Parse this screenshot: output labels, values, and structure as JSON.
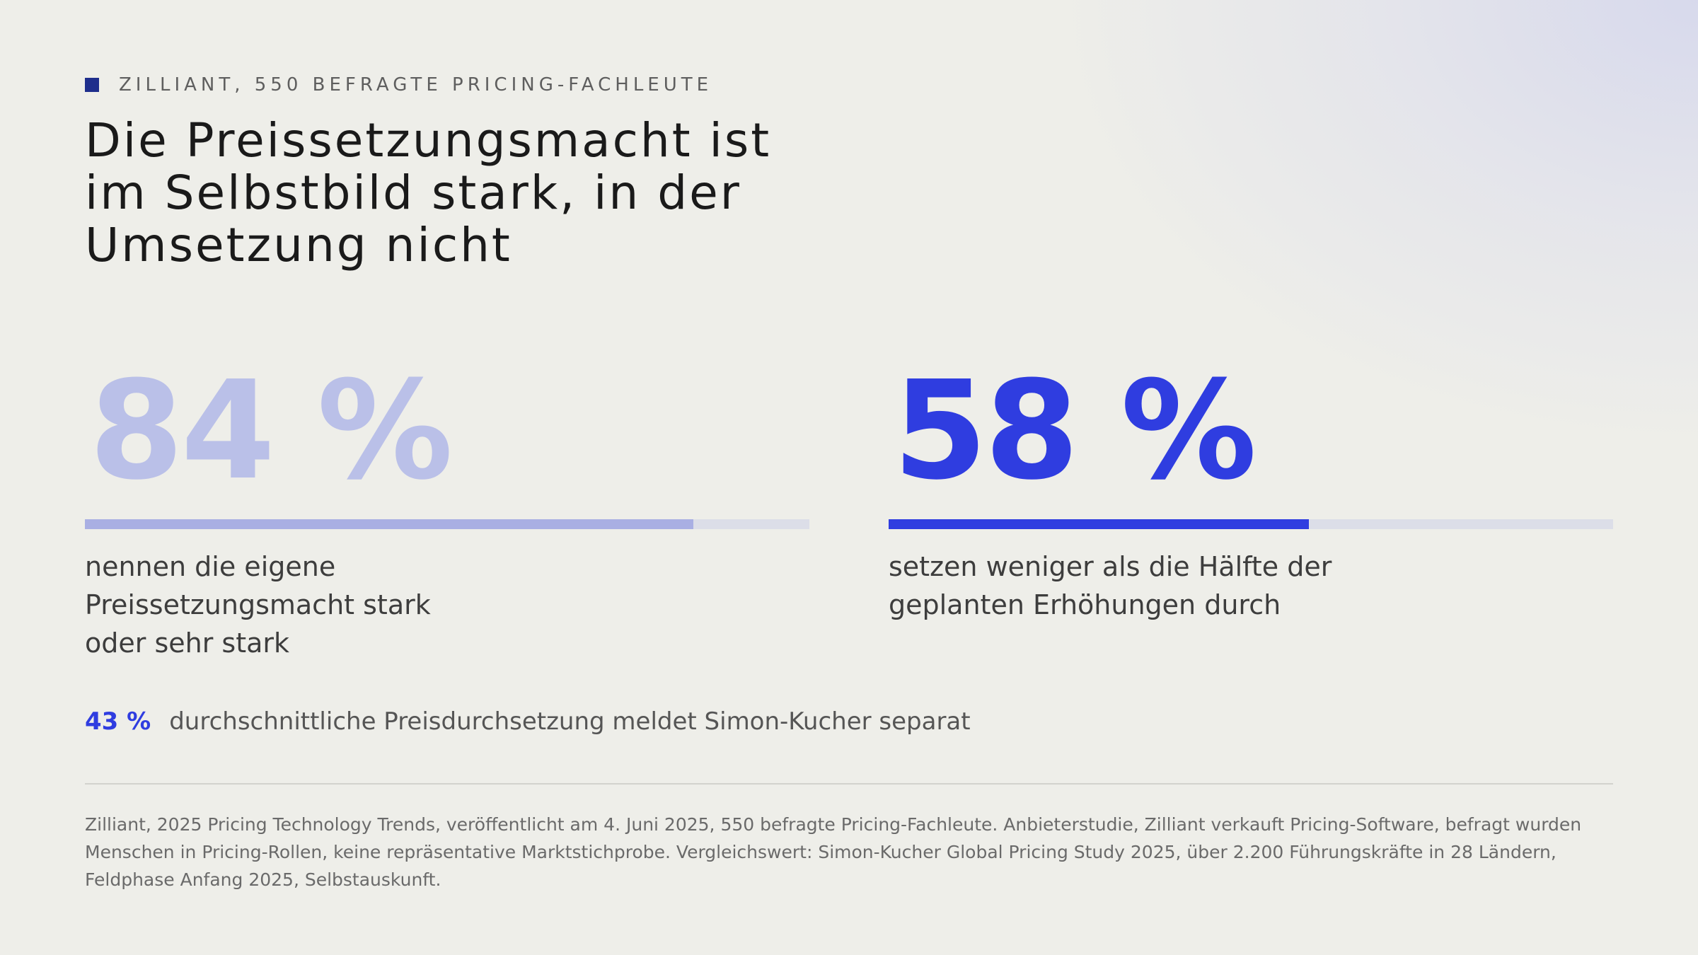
{
  "eyebrow": {
    "text": "ZILLIANT, 550 BEFRAGTE PRICING-FACHLEUTE"
  },
  "title": {
    "line1": "Die Preissetzungsmacht ist",
    "line2": "im Selbstbild stark, in der",
    "line3": "Umsetzung nicht"
  },
  "stats": [
    {
      "value_label": "84 %",
      "value": 84,
      "bar_color": "#a9afe3",
      "number_color": "#bac0e8",
      "caption_line1": "nennen die eigene",
      "caption_line2": "Preissetzungsmacht stark",
      "caption_line3": "oder sehr stark"
    },
    {
      "value_label": "58 %",
      "value": 58,
      "bar_color": "#2f3de0",
      "number_color": "#2f3de0",
      "caption_line1": "setzen weniger als die Hälfte der",
      "caption_line2": "geplanten Erhöhungen durch"
    }
  ],
  "note": {
    "value": "43 %",
    "text": "durchschnittliche Preisdurchsetzung meldet Simon-Kucher separat"
  },
  "source": {
    "text": "Zilliant, 2025 Pricing Technology Trends, veröffentlicht am 4. Juni 2025, 550 befragte Pricing-Fachleute. Anbieterstudie, Zilliant verkauft Pricing-Software, befragt wurden Menschen in Pricing-Rollen, keine repräsentative Marktstichprobe. Vergleichswert: Simon-Kucher Global Pricing Study 2025, über 2.200 Führungskräfte in 28 Ländern, Feldphase Anfang 2025, Selbstauskunft."
  },
  "colors": {
    "accent": "#2f3de0",
    "accent_light": "#bac0e8",
    "eyebrow_mark": "#1e2e8c",
    "bar_track": "#dcdee8"
  }
}
